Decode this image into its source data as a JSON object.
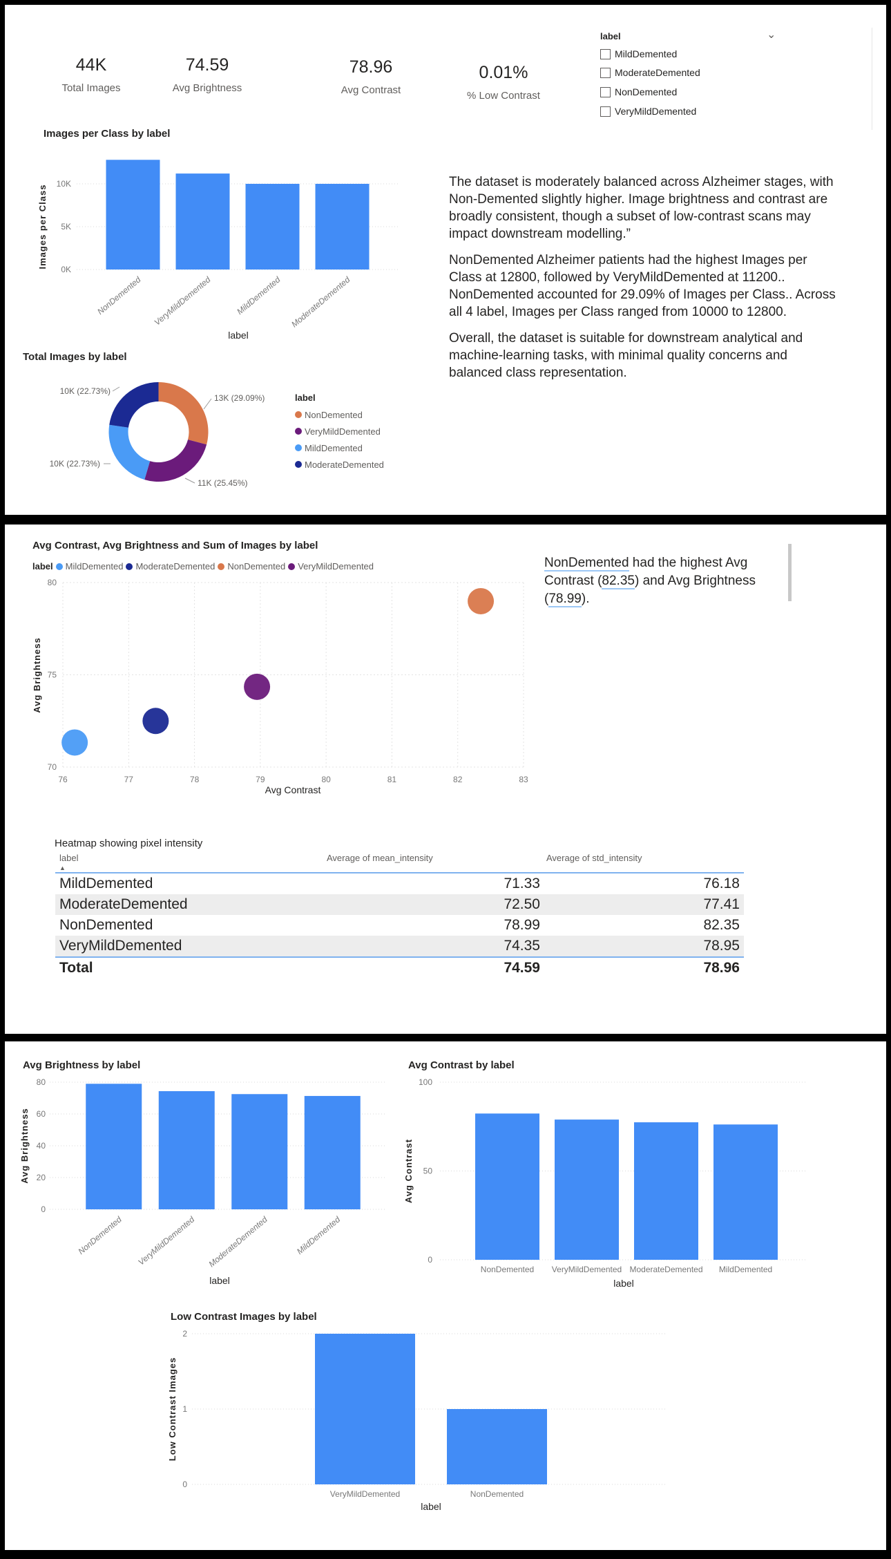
{
  "kpis": [
    {
      "value": "44K",
      "label": "Total Images"
    },
    {
      "value": "74.59",
      "label": "Avg Brightness"
    },
    {
      "value": "78.96",
      "label": "Avg Contrast"
    },
    {
      "value": "0.01%",
      "label": "% Low Contrast"
    }
  ],
  "slicer": {
    "title": "label",
    "icon": "chevron-down-icon",
    "items": [
      "MildDemented",
      "ModerateDemented",
      "NonDemented",
      "VeryMildDemented"
    ],
    "checked": [
      false,
      false,
      false,
      false
    ]
  },
  "narrative1": [
    "The dataset is moderately balanced across Alzheimer stages, with Non-Demented slightly higher. Image brightness and contrast are broadly consistent, though a subset of low-contrast scans may impact downstream modelling.”",
    "NonDemented Alzheimer patients had the highest Images per Class at 12800, followed by VeryMildDemented at 11200.. NonDemented accounted for 29.09% of Images per Class.. Across all 4 label, Images per Class ranged from 10000 to 12800.",
    "Overall, the dataset is suitable for downstream analytical and machine-learning tasks, with minimal quality concerns and balanced class representation."
  ],
  "narrative2": {
    "p1": "NonDemented",
    "p2": " had the highest Avg Contrast (",
    "p3": "82.35",
    "p4": ") and Avg Brightness (",
    "p5": "78.99",
    "p6": ")."
  },
  "colors": {
    "bar": "#428CF6",
    "NonDemented": "#D9784B",
    "VeryMildDemented": "#6B1B7B",
    "MildDemented": "#4A9BF6",
    "ModerateDemented": "#1B2A93"
  },
  "table": {
    "title": "Heatmap showing pixel intensity",
    "columns": [
      "label",
      "Average of mean_intensity",
      "Average of std_intensity"
    ],
    "sort_indicator": "▲",
    "rows": [
      [
        "MildDemented",
        "71.33",
        "76.18"
      ],
      [
        "ModerateDemented",
        "72.50",
        "77.41"
      ],
      [
        "NonDemented",
        "78.99",
        "82.35"
      ],
      [
        "VeryMildDemented",
        "74.35",
        "78.95"
      ]
    ],
    "total": [
      "Total",
      "74.59",
      "78.96"
    ]
  },
  "chart_data": [
    {
      "type": "bar",
      "title": "Images per Class by label",
      "xlabel": "label",
      "ylabel": "Images per Class",
      "categories": [
        "NonDemented",
        "VeryMildDemented",
        "MildDemented",
        "ModerateDemented"
      ],
      "values": [
        12800,
        11200,
        10000,
        10000
      ],
      "ylim": [
        0,
        12800
      ],
      "yticks": [
        0,
        5000,
        10000
      ],
      "ytick_labels": [
        "0K",
        "5K",
        "10K"
      ],
      "grid": true,
      "rotated_labels": true
    },
    {
      "type": "pie",
      "title": "Total Images by label",
      "donut": true,
      "legend_title": "label",
      "legend_placement": "right",
      "categories": [
        "NonDemented",
        "VeryMildDemented",
        "MildDemented",
        "ModerateDemented"
      ],
      "values": [
        12800,
        11200,
        10000,
        10000
      ],
      "percents": [
        29.09,
        25.45,
        22.73,
        22.73
      ],
      "data_labels": [
        "13K (29.09%)",
        "11K (25.45%)",
        "10K (22.73%)",
        "10K (22.73%)"
      ]
    },
    {
      "type": "scatter",
      "title": "Avg Contrast, Avg Brightness and Sum of Images by label",
      "xlabel": "Avg Contrast",
      "ylabel": "Avg Brightness",
      "legend_title": "label",
      "legend_placement": "top-left",
      "series": [
        {
          "name": "MildDemented",
          "x": 76.18,
          "y": 71.33
        },
        {
          "name": "ModerateDemented",
          "x": 77.41,
          "y": 72.5
        },
        {
          "name": "NonDemented",
          "x": 82.35,
          "y": 78.99
        },
        {
          "name": "VeryMildDemented",
          "x": 78.95,
          "y": 74.35
        }
      ],
      "xlim": [
        76,
        83
      ],
      "ylim": [
        70,
        80
      ],
      "xticks": [
        76,
        77,
        78,
        79,
        80,
        81,
        82,
        83
      ],
      "yticks": [
        70,
        75,
        80
      ],
      "grid": true
    },
    {
      "type": "bar",
      "title": "Avg Brightness by label",
      "xlabel": "label",
      "ylabel": "Avg Brightness",
      "categories": [
        "NonDemented",
        "VeryMildDemented",
        "ModerateDemented",
        "MildDemented"
      ],
      "values": [
        78.99,
        74.35,
        72.5,
        71.33
      ],
      "ylim": [
        0,
        80
      ],
      "yticks": [
        0,
        20,
        40,
        60,
        80
      ],
      "ytick_labels": [
        "0",
        "20",
        "40",
        "60",
        "80"
      ],
      "grid": true,
      "rotated_labels": true
    },
    {
      "type": "bar",
      "title": "Avg Contrast by label",
      "xlabel": "label",
      "ylabel": "Avg Contrast",
      "categories": [
        "NonDemented",
        "VeryMildDemented",
        "ModerateDemented",
        "MildDemented"
      ],
      "values": [
        82.35,
        78.95,
        77.41,
        76.18
      ],
      "ylim": [
        0,
        100
      ],
      "yticks": [
        0,
        50,
        100
      ],
      "ytick_labels": [
        "0",
        "50",
        "100"
      ],
      "grid": true,
      "rotated_labels": false
    },
    {
      "type": "bar",
      "title": "Low Contrast Images by label",
      "xlabel": "label",
      "ylabel": "Low Contrast Images",
      "categories": [
        "VeryMildDemented",
        "NonDemented"
      ],
      "values": [
        2,
        1
      ],
      "ylim": [
        0,
        2
      ],
      "yticks": [
        0,
        1,
        2
      ],
      "ytick_labels": [
        "0",
        "1",
        "2"
      ],
      "grid": true,
      "rotated_labels": false
    }
  ]
}
